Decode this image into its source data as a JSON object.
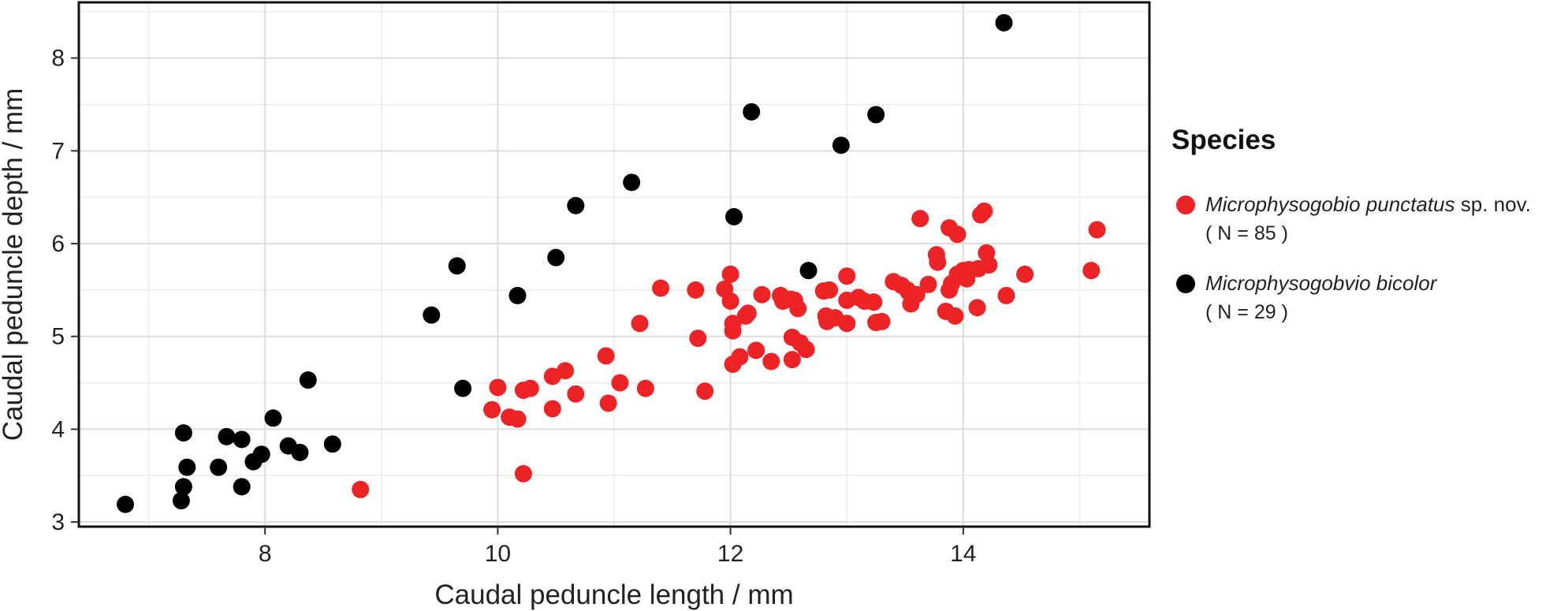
{
  "chart_data": {
    "type": "scatter",
    "title": "",
    "xlabel": "Caudal peduncle length / mm",
    "ylabel": "Caudal peduncle depth / mm",
    "xlim": [
      6.4,
      15.6
    ],
    "ylim": [
      2.95,
      8.6
    ],
    "xticks": [
      8,
      10,
      12,
      14
    ],
    "yticks": [
      3,
      4,
      5,
      6,
      7,
      8
    ],
    "grid": true,
    "legend": {
      "title": "Species",
      "position": "right",
      "entries": [
        {
          "name_italic": "Microphysogobio punctatus",
          "name_suffix": " sp. nov.",
          "count_label": "( N = 85 )",
          "color": "#ee2326"
        },
        {
          "name_italic": "Microphysogobvio bicolor",
          "name_suffix": "",
          "count_label": "( N = 29 )",
          "color": "#000000"
        }
      ]
    },
    "series": [
      {
        "name": "Microphysogobvio bicolor",
        "color": "#000000",
        "points": [
          [
            6.8,
            3.19
          ],
          [
            7.28,
            3.23
          ],
          [
            7.3,
            3.38
          ],
          [
            7.3,
            3.96
          ],
          [
            7.33,
            3.59
          ],
          [
            7.6,
            3.59
          ],
          [
            7.67,
            3.92
          ],
          [
            7.8,
            3.38
          ],
          [
            7.8,
            3.89
          ],
          [
            7.9,
            3.65
          ],
          [
            7.97,
            3.73
          ],
          [
            8.07,
            4.12
          ],
          [
            8.2,
            3.82
          ],
          [
            8.3,
            3.75
          ],
          [
            8.37,
            4.53
          ],
          [
            8.58,
            3.84
          ],
          [
            9.43,
            5.23
          ],
          [
            9.65,
            5.76
          ],
          [
            9.7,
            4.44
          ],
          [
            10.17,
            5.44
          ],
          [
            10.5,
            5.85
          ],
          [
            10.67,
            6.41
          ],
          [
            11.15,
            6.66
          ],
          [
            12.03,
            6.29
          ],
          [
            12.18,
            7.42
          ],
          [
            12.67,
            5.71
          ],
          [
            12.95,
            7.06
          ],
          [
            13.25,
            7.39
          ],
          [
            14.35,
            8.38
          ]
        ]
      },
      {
        "name": "Microphysogobio punctatus sp. nov.",
        "color": "#ee2326",
        "points": [
          [
            8.82,
            3.35
          ],
          [
            9.95,
            4.21
          ],
          [
            10.0,
            4.45
          ],
          [
            10.1,
            4.13
          ],
          [
            10.17,
            4.11
          ],
          [
            10.22,
            4.42
          ],
          [
            10.22,
            3.52
          ],
          [
            10.28,
            4.44
          ],
          [
            10.47,
            4.22
          ],
          [
            10.47,
            4.57
          ],
          [
            10.58,
            4.63
          ],
          [
            10.67,
            4.38
          ],
          [
            10.93,
            4.79
          ],
          [
            10.95,
            4.28
          ],
          [
            11.05,
            4.5
          ],
          [
            11.22,
            5.14
          ],
          [
            11.27,
            4.44
          ],
          [
            11.4,
            5.52
          ],
          [
            11.7,
            5.5
          ],
          [
            11.72,
            4.98
          ],
          [
            11.78,
            4.41
          ],
          [
            11.95,
            5.51
          ],
          [
            12.0,
            5.67
          ],
          [
            12.0,
            5.38
          ],
          [
            12.02,
            5.14
          ],
          [
            12.02,
            5.06
          ],
          [
            12.02,
            4.7
          ],
          [
            12.08,
            4.78
          ],
          [
            12.13,
            5.22
          ],
          [
            12.15,
            5.25
          ],
          [
            12.22,
            4.85
          ],
          [
            12.27,
            5.45
          ],
          [
            12.35,
            4.73
          ],
          [
            12.43,
            5.44
          ],
          [
            12.45,
            5.38
          ],
          [
            12.52,
            5.4
          ],
          [
            12.53,
            4.99
          ],
          [
            12.53,
            4.75
          ],
          [
            12.55,
            5.39
          ],
          [
            12.6,
            4.93
          ],
          [
            12.65,
            4.86
          ],
          [
            12.8,
            5.49
          ],
          [
            12.82,
            5.22
          ],
          [
            12.83,
            5.16
          ],
          [
            12.85,
            5.5
          ],
          [
            13.0,
            5.65
          ],
          [
            13.0,
            5.39
          ],
          [
            13.0,
            5.14
          ],
          [
            13.1,
            5.42
          ],
          [
            13.15,
            5.38
          ],
          [
            13.23,
            5.37
          ],
          [
            13.25,
            5.15
          ],
          [
            13.3,
            5.16
          ],
          [
            13.4,
            5.59
          ],
          [
            13.47,
            5.55
          ],
          [
            13.52,
            5.5
          ],
          [
            13.55,
            5.35
          ],
          [
            13.6,
            5.45
          ],
          [
            13.63,
            6.27
          ],
          [
            13.7,
            5.56
          ],
          [
            13.77,
            5.88
          ],
          [
            13.78,
            5.8
          ],
          [
            13.85,
            5.27
          ],
          [
            13.88,
            6.17
          ],
          [
            13.88,
            5.5
          ],
          [
            13.9,
            5.57
          ],
          [
            13.93,
            5.22
          ],
          [
            13.95,
            6.1
          ],
          [
            13.95,
            5.67
          ],
          [
            14.0,
            5.71
          ],
          [
            14.03,
            5.62
          ],
          [
            14.05,
            5.72
          ],
          [
            14.12,
            5.31
          ],
          [
            14.13,
            5.73
          ],
          [
            14.15,
            6.31
          ],
          [
            14.18,
            6.35
          ],
          [
            14.2,
            5.9
          ],
          [
            14.22,
            5.77
          ],
          [
            14.37,
            5.44
          ],
          [
            14.53,
            5.67
          ],
          [
            15.1,
            5.71
          ],
          [
            15.15,
            6.15
          ],
          [
            13.53,
            5.48
          ],
          [
            12.9,
            5.2
          ],
          [
            12.58,
            5.3
          ]
        ]
      }
    ]
  }
}
